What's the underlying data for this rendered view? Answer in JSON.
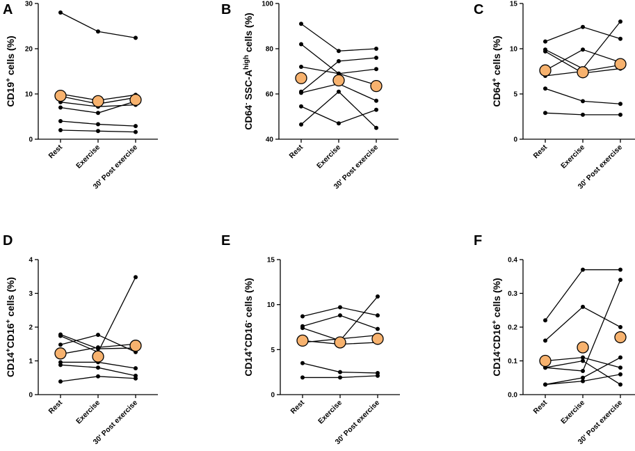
{
  "chart_data": [
    {
      "panel": "A",
      "type": "line",
      "ylabel_parts": [
        {
          "t": "CD19"
        },
        {
          "t": "+",
          "sup": true
        },
        {
          "t": " cells (%)"
        }
      ],
      "categories": [
        "Rest",
        "Exercise",
        "30' Post exercise"
      ],
      "ylim": [
        0,
        30
      ],
      "yticks": [
        "0",
        "10",
        "20",
        "30"
      ],
      "tick_values": [
        0,
        10,
        20,
        30
      ],
      "series": [
        [
          28.0,
          23.8,
          22.4
        ],
        [
          10.0,
          8.6,
          9.8
        ],
        [
          9.5,
          7.8,
          9.2
        ],
        [
          8.2,
          7.2,
          7.6
        ],
        [
          7.0,
          5.8,
          8.4
        ],
        [
          4.0,
          3.3,
          2.9
        ],
        [
          2.0,
          1.8,
          1.6
        ]
      ],
      "mean": [
        9.6,
        8.4,
        8.7
      ]
    },
    {
      "panel": "B",
      "type": "line",
      "ylabel_parts": [
        {
          "t": "CD64"
        },
        {
          "t": "-",
          "sup": true
        },
        {
          "t": " SSC-A"
        },
        {
          "t": "high",
          "sup": true
        },
        {
          "t": " cells (%)"
        }
      ],
      "categories": [
        "Rest",
        "Exercise",
        "30' Post exercise"
      ],
      "ylim": [
        40,
        100
      ],
      "yticks": [
        "40",
        "60",
        "80",
        "100"
      ],
      "tick_values": [
        40,
        60,
        80,
        100
      ],
      "series": [
        [
          91.0,
          79.0,
          80.0
        ],
        [
          82.0,
          69.0,
          64.0
        ],
        [
          72.0,
          69.0,
          71.0
        ],
        [
          61.0,
          74.5,
          76.0
        ],
        [
          60.5,
          64.5,
          57.0
        ],
        [
          54.5,
          47.0,
          53.0
        ],
        [
          46.5,
          61.0,
          45.0
        ]
      ],
      "mean": [
        67.0,
        66.0,
        63.5
      ]
    },
    {
      "panel": "C",
      "type": "line",
      "ylabel_parts": [
        {
          "t": "CD64"
        },
        {
          "t": "+",
          "sup": true
        },
        {
          "t": " cells (%)"
        }
      ],
      "categories": [
        "Rest",
        "Exercise",
        "30' Post exercise"
      ],
      "ylim": [
        0,
        15
      ],
      "yticks": [
        "0",
        "5",
        "10",
        "15"
      ],
      "tick_values": [
        0,
        5,
        10,
        15
      ],
      "series": [
        [
          10.8,
          12.4,
          11.1
        ],
        [
          9.9,
          7.8,
          13.0
        ],
        [
          9.7,
          7.3,
          7.8
        ],
        [
          7.6,
          9.9,
          8.5
        ],
        [
          7.0,
          7.5,
          8.2
        ],
        [
          5.6,
          4.2,
          3.9
        ],
        [
          2.9,
          2.7,
          2.7
        ]
      ],
      "mean": [
        7.6,
        7.4,
        8.3
      ]
    },
    {
      "panel": "D",
      "type": "line",
      "ylabel_parts": [
        {
          "t": "CD14"
        },
        {
          "t": "+",
          "sup": true
        },
        {
          "t": "CD16"
        },
        {
          "t": "+",
          "sup": true
        },
        {
          "t": " cells (%)"
        }
      ],
      "categories": [
        "Rest",
        "Exercise",
        "30' Post exercise"
      ],
      "ylim": [
        0,
        4
      ],
      "yticks": [
        "0",
        "1",
        "2",
        "3",
        "4"
      ],
      "tick_values": [
        0,
        1,
        2,
        3,
        4
      ],
      "series": [
        [
          1.78,
          1.36,
          1.38
        ],
        [
          1.74,
          1.26,
          3.48
        ],
        [
          1.48,
          1.77,
          1.26
        ],
        [
          1.2,
          1.4,
          1.5
        ],
        [
          0.96,
          0.96,
          0.78
        ],
        [
          0.88,
          0.8,
          0.56
        ],
        [
          0.39,
          0.54,
          0.48
        ]
      ],
      "mean": [
        1.22,
        1.13,
        1.45
      ]
    },
    {
      "panel": "E",
      "type": "line",
      "ylabel_parts": [
        {
          "t": "CD14"
        },
        {
          "t": "+",
          "sup": true
        },
        {
          "t": "CD16"
        },
        {
          "t": "-",
          "sup": true
        },
        {
          "t": " cells (%)"
        }
      ],
      "categories": [
        "Rest",
        "Exercise",
        "30' Post exercise"
      ],
      "ylim": [
        0,
        15
      ],
      "yticks": [
        "0",
        "5",
        "10",
        "15"
      ],
      "tick_values": [
        0,
        5,
        10,
        15
      ],
      "series": [
        [
          8.7,
          9.7,
          8.8
        ],
        [
          7.6,
          8.8,
          7.3
        ],
        [
          7.4,
          6.0,
          10.9
        ],
        [
          6.0,
          5.6,
          5.8
        ],
        [
          5.8,
          6.2,
          6.6
        ],
        [
          3.5,
          2.5,
          2.4
        ],
        [
          1.9,
          1.9,
          2.1
        ]
      ],
      "mean": [
        6.0,
        5.8,
        6.2
      ]
    },
    {
      "panel": "F",
      "type": "line",
      "ylabel_parts": [
        {
          "t": "CD14"
        },
        {
          "t": "-",
          "sup": true
        },
        {
          "t": "CD16"
        },
        {
          "t": "+",
          "sup": true
        },
        {
          "t": " cells (%)"
        }
      ],
      "categories": [
        "Rest",
        "Exercise",
        "30' Post exercise"
      ],
      "ylim": [
        0,
        0.4
      ],
      "yticks": [
        "0.0",
        "0.1",
        "0.2",
        "0.3",
        "0.4"
      ],
      "tick_values": [
        0,
        0.1,
        0.2,
        0.3,
        0.4
      ],
      "series": [
        [
          0.22,
          0.37,
          0.37
        ],
        [
          0.16,
          0.26,
          0.2
        ],
        [
          0.1,
          0.11,
          0.08
        ],
        [
          0.08,
          0.07,
          0.34
        ],
        [
          0.08,
          0.1,
          0.03
        ],
        [
          0.03,
          0.05,
          0.11
        ],
        [
          0.03,
          0.04,
          0.06
        ]
      ],
      "mean": [
        0.1,
        0.14,
        0.17
      ]
    }
  ],
  "style": {
    "line_color": "#000000",
    "dot_color": "#000000",
    "mean_fill": "#f7b26e",
    "mean_stroke": "#000000"
  }
}
